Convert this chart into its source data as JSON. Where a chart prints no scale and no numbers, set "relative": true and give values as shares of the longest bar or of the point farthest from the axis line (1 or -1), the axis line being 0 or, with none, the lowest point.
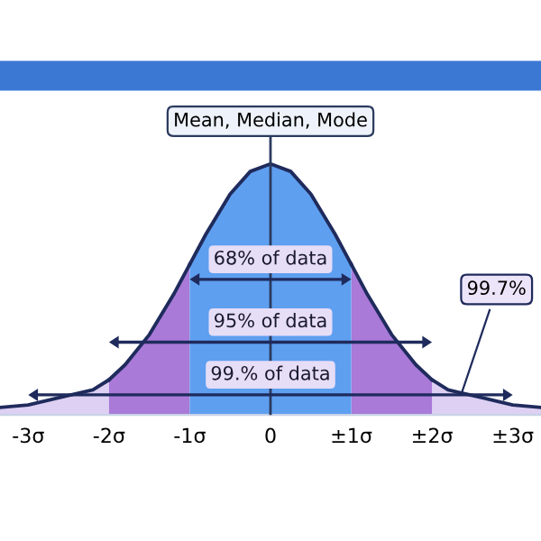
{
  "chart_data": {
    "type": "area",
    "relative": true,
    "series": [
      {
        "color": "#ddd0f3",
        "x": [
          -3.35,
          -3,
          -2.6,
          -2.2,
          -2,
          0,
          2,
          2.2,
          2.6,
          3,
          3.35
        ],
        "values": [
          0.03,
          0.04,
          0.07,
          0.1,
          0.14,
          null,
          0.14,
          0.1,
          0.07,
          0.04,
          0.03
        ]
      },
      {
        "color": "#a97ad8",
        "x": [
          -2,
          -1.8,
          -1.5,
          -1.2,
          -1,
          0,
          1,
          1.2,
          1.5,
          1.8,
          2
        ],
        "values": [
          0.14,
          0.2,
          0.32,
          0.48,
          0.6,
          null,
          0.6,
          0.48,
          0.32,
          0.2,
          0.14
        ]
      },
      {
        "color": "#5e9ff0",
        "x": [
          -1,
          -0.8,
          -0.5,
          -0.25,
          0,
          0.25,
          0.5,
          0.8,
          1
        ],
        "values": [
          0.6,
          0.72,
          0.88,
          0.97,
          1,
          0.97,
          0.88,
          0.72,
          0.6
        ]
      }
    ],
    "xlim": [
      -3.35,
      3.35
    ],
    "xticks": [
      {
        "value": -3,
        "label": "-3σ"
      },
      {
        "value": -2,
        "label": "-2σ"
      },
      {
        "value": -1,
        "label": "-1σ"
      },
      0,
      {
        "value": 1,
        "label": "±1σ"
      },
      {
        "value": 2,
        "label": "±2σ"
      },
      {
        "value": 3,
        "label": "±3σ"
      }
    ],
    "ref_lines": [
      {
        "axis": "x",
        "value": 0,
        "label": "Mean, Median, Mode",
        "color": "#2b3a5e"
      }
    ],
    "annotations": [
      "99.% of data",
      "95% of data",
      "68% of data",
      {
        "text": "99.7%",
        "x": 2.35,
        "y": 0.07
      }
    ],
    "grid": false,
    "legend": false
  }
}
